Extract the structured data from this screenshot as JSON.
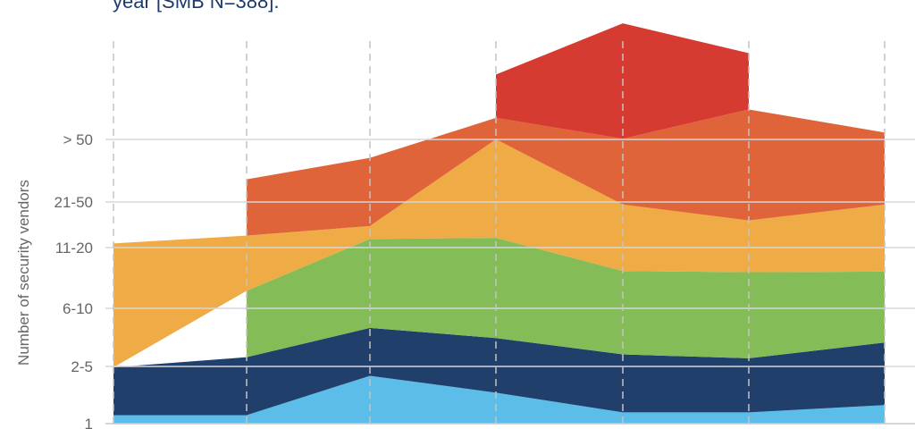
{
  "subtitle": "year [SMB N=388].",
  "chart_data": {
    "type": "area",
    "ylabel": "Number of security vendors",
    "ytick_labels": [
      "1",
      "2-5",
      "6-10",
      "11-20",
      "21-50",
      "> 50"
    ],
    "x_points": 7,
    "stack_order": [
      "1",
      "2-5",
      "6-10",
      "11-20",
      "21-50",
      "> 50"
    ],
    "colors": {
      "1": "#5bbde8",
      "2-5": "#203f6b",
      "6-10": "#84bd58",
      "11-20": "#eeab46",
      "21-50": "#e0643a",
      "> 50": "#d63b32"
    },
    "series": [
      {
        "name": "1",
        "values": [
          0.15,
          0.15,
          0.85,
          0.55,
          0.2,
          0.2,
          0.33
        ]
      },
      {
        "name": "2-5",
        "values": [
          0.85,
          1.03,
          0.85,
          0.97,
          1.03,
          0.96,
          1.11
        ]
      },
      {
        "name": "6-10",
        "values": [
          0.0,
          1.18,
          1.58,
          1.78,
          1.48,
          1.53,
          1.26
        ]
      },
      {
        "name": "11-20",
        "values": [
          2.2,
          0.98,
          0.23,
          1.75,
          1.18,
          0.92,
          1.19
        ]
      },
      {
        "name": "21-50",
        "values": [
          0.0,
          1.0,
          1.21,
          0.38,
          1.17,
          1.97,
          1.28
        ]
      },
      {
        "name": "> 50",
        "values": [
          0.0,
          0.0,
          0.0,
          0.77,
          2.05,
          1.0,
          0.0
        ]
      }
    ],
    "grid": {
      "vertical": "dashed",
      "horizontal": "solid"
    }
  }
}
